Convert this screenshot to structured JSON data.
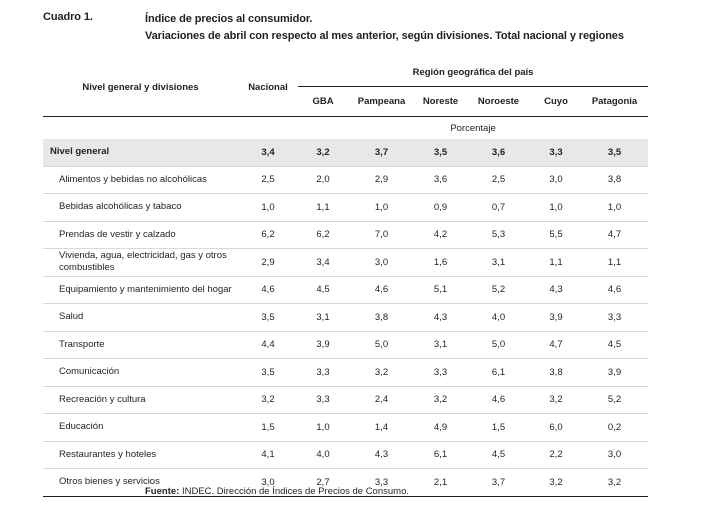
{
  "caption": {
    "label": "Cuadro 1.",
    "title_line1": "Índice de precios al consumidor.",
    "title_line2": "Variaciones de abril con respecto al mes anterior, según divisiones. Total nacional y regiones"
  },
  "table": {
    "header_divisions": "Nivel general y divisiones",
    "header_nacional": "Nacional",
    "header_region_group": "Región geográfica del país",
    "regions": [
      "GBA",
      "Pampeana",
      "Noreste",
      "Noroeste",
      "Cuyo",
      "Patagonia"
    ],
    "unit": "Porcentaje",
    "rows": [
      {
        "label": "Nivel general",
        "values": [
          "3,4",
          "3,2",
          "3,7",
          "3,5",
          "3,6",
          "3,3",
          "3,5"
        ]
      },
      {
        "label": "Alimentos y bebidas no alcohólicas",
        "values": [
          "2,5",
          "2,0",
          "2,9",
          "3,6",
          "2,5",
          "3,0",
          "3,8"
        ]
      },
      {
        "label": "Bebidas alcohólicas y tabaco",
        "values": [
          "1,0",
          "1,1",
          "1,0",
          "0,9",
          "0,7",
          "1,0",
          "1,0"
        ]
      },
      {
        "label": "Prendas de vestir y calzado",
        "values": [
          "6,2",
          "6,2",
          "7,0",
          "4,2",
          "5,3",
          "5,5",
          "4,7"
        ]
      },
      {
        "label": "Vivienda, agua, electricidad, gas y otros combustibles",
        "values": [
          "2,9",
          "3,4",
          "3,0",
          "1,6",
          "3,1",
          "1,1",
          "1,1"
        ]
      },
      {
        "label": "Equipamiento y mantenimiento del hogar",
        "values": [
          "4,6",
          "4,5",
          "4,6",
          "5,1",
          "5,2",
          "4,3",
          "4,6"
        ]
      },
      {
        "label": "Salud",
        "values": [
          "3,5",
          "3,1",
          "3,8",
          "4,3",
          "4,0",
          "3,9",
          "3,3"
        ]
      },
      {
        "label": "Transporte",
        "values": [
          "4,4",
          "3,9",
          "5,0",
          "3,1",
          "5,0",
          "4,7",
          "4,5"
        ]
      },
      {
        "label": "Comunicación",
        "values": [
          "3,5",
          "3,3",
          "3,2",
          "3,3",
          "6,1",
          "3,8",
          "3,9"
        ]
      },
      {
        "label": "Recreación y cultura",
        "values": [
          "3,2",
          "3,3",
          "2,4",
          "3,2",
          "4,6",
          "3,2",
          "5,2"
        ]
      },
      {
        "label": "Educación",
        "values": [
          "1,5",
          "1,0",
          "1,4",
          "4,9",
          "1,5",
          "6,0",
          "0,2"
        ]
      },
      {
        "label": "Restaurantes y hoteles",
        "values": [
          "4,1",
          "4,0",
          "4,3",
          "6,1",
          "4,5",
          "2,2",
          "3,0"
        ]
      },
      {
        "label": "Otros bienes y servicios",
        "values": [
          "3,0",
          "2,7",
          "3,3",
          "2,1",
          "3,7",
          "3,2",
          "3,2"
        ]
      }
    ]
  },
  "source": {
    "label": "Fuente:",
    "text": "INDEC. Dirección de Índices de Precios de Consumo."
  }
}
